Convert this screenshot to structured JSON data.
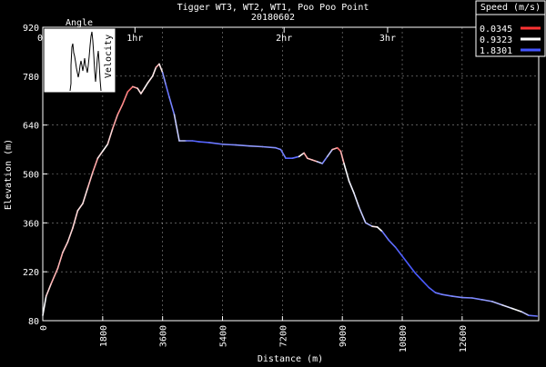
{
  "chart_data": {
    "type": "line",
    "title": "Tigger WT3, WT2, WT1, Poo Poo Point",
    "subtitle": "20180602",
    "xlabel": "Distance (m)",
    "ylabel": "Elevation (m)",
    "xlim": [
      0,
      14900
    ],
    "ylim": [
      80,
      920
    ],
    "xticks": [
      0,
      1800,
      3600,
      5400,
      7200,
      9000,
      10800,
      12600
    ],
    "yticks": [
      80,
      220,
      360,
      500,
      640,
      780,
      920
    ],
    "time_markers": [
      {
        "label": "0h",
        "x": 0
      },
      {
        "label": "1hr",
        "x": 2770
      },
      {
        "label": "2hr",
        "x": 7250
      },
      {
        "label": "3hr",
        "x": 10360
      }
    ],
    "legend": {
      "title": "Speed (m/s)",
      "position": "top-right",
      "entries": [
        {
          "label": "0.0345",
          "color": "#ff3333"
        },
        {
          "label": "0.9323",
          "color": "#ffffff"
        },
        {
          "label": "1.8301",
          "color": "#4455ff"
        }
      ]
    },
    "inset": {
      "title": "Angle",
      "ylabel": "Velocity",
      "position": "top-left"
    },
    "series": [
      {
        "x": [
          0,
          100,
          250,
          450,
          600,
          750,
          900,
          1050,
          1200,
          1350,
          1500,
          1650,
          1800,
          1950,
          2100,
          2250,
          2400,
          2550,
          2700,
          2850,
          2950,
          3050,
          3150,
          3300,
          3400,
          3500,
          3600,
          3700,
          3800,
          3950,
          4100,
          4300,
          4500,
          4700,
          5000,
          5400,
          5800,
          6200,
          6600,
          7000,
          7150,
          7300,
          7500,
          7700,
          7850,
          7950,
          8100,
          8250,
          8400,
          8550,
          8700,
          8850,
          8950,
          9050,
          9200,
          9350,
          9500,
          9700,
          9900,
          10050,
          10200,
          10400,
          10600,
          10800,
          11000,
          11200,
          11400,
          11600,
          11800,
          12000,
          12300,
          12600,
          12900,
          13200,
          13500,
          13800,
          14100,
          14400,
          14600,
          14850
        ],
        "y": [
          95,
          150,
          185,
          230,
          275,
          305,
          345,
          395,
          415,
          460,
          505,
          545,
          565,
          585,
          630,
          670,
          700,
          735,
          750,
          745,
          730,
          745,
          760,
          780,
          805,
          815,
          790,
          755,
          720,
          670,
          595,
          595,
          595,
          592,
          590,
          585,
          583,
          580,
          578,
          575,
          570,
          545,
          545,
          550,
          560,
          545,
          540,
          535,
          530,
          550,
          570,
          575,
          565,
          530,
          480,
          445,
          405,
          360,
          350,
          348,
          335,
          310,
          290,
          265,
          240,
          215,
          195,
          175,
          160,
          155,
          150,
          146,
          145,
          140,
          135,
          125,
          115,
          105,
          95,
          93
        ],
        "speed": [
          0.9,
          1.0,
          0.5,
          0.7,
          0.5,
          0.9,
          0.6,
          0.9,
          0.7,
          0.9,
          0.4,
          0.7,
          0.9,
          0.9,
          0.6,
          0.5,
          0.4,
          0.4,
          0.2,
          0.9,
          0.7,
          0.9,
          0.9,
          0.8,
          0.9,
          0.3,
          1.4,
          1.6,
          1.7,
          1.5,
          0.9,
          1.6,
          1.7,
          1.8,
          1.7,
          1.6,
          1.5,
          1.5,
          1.4,
          1.6,
          1.5,
          1.7,
          1.8,
          1.6,
          0.2,
          0.9,
          0.4,
          0.9,
          1.5,
          1.6,
          0.9,
          0.3,
          0.3,
          0.9,
          1.0,
          1.0,
          1.1,
          1.3,
          1.4,
          0.3,
          1.6,
          1.7,
          1.7,
          1.8,
          1.8,
          1.8,
          1.8,
          1.8,
          1.7,
          1.6,
          1.6,
          1.5,
          1.6,
          1.5,
          1.4,
          1.2,
          1.0,
          0.9,
          1.6,
          1.7
        ]
      }
    ]
  }
}
